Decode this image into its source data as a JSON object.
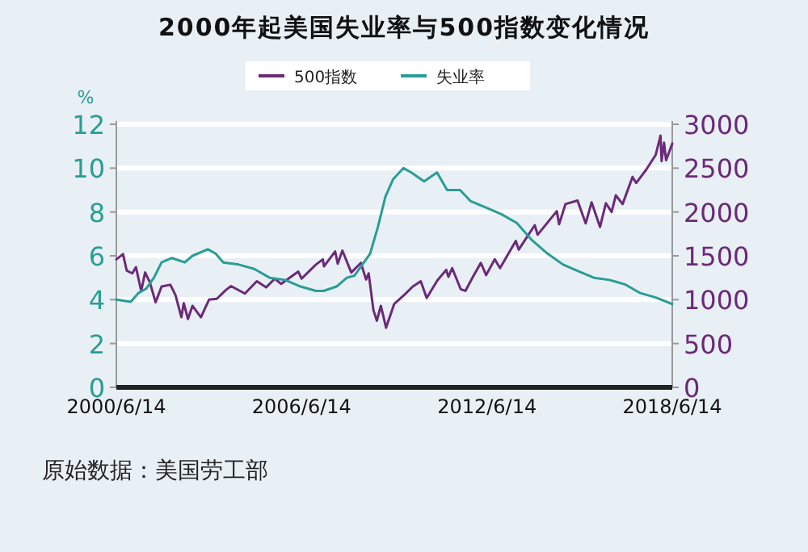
{
  "chart_data": {
    "type": "line",
    "title": "2000年起美国失业率与500指数变化情况",
    "ylabel": "%",
    "xlim": [
      "2000-06-14",
      "2018-06-14"
    ],
    "xticks": [
      {
        "value": "2000-06-14",
        "label": "2000/6/14"
      },
      {
        "value": "2006-06-14",
        "label": "2006/6/14"
      },
      {
        "value": "2012-06-14",
        "label": "2012/6/14"
      },
      {
        "value": "2018-06-14",
        "label": "2018/6/14"
      }
    ],
    "ylim": [
      0,
      12
    ],
    "yticks": [
      0,
      2,
      4,
      6,
      8,
      10,
      12
    ],
    "y2lim": [
      0,
      3000
    ],
    "y2ticks": [
      0,
      500,
      1000,
      1500,
      2000,
      2500,
      3000
    ],
    "grid": "y",
    "legend": "top",
    "series": [
      {
        "name": "500指数",
        "color": "#6b2a7a",
        "axis": "y2",
        "x": [
          "2000-06-14",
          "2000-09-01",
          "2000-10-15",
          "2000-12-20",
          "2001-02-01",
          "2001-04-04",
          "2001-05-20",
          "2001-07-15",
          "2001-09-21",
          "2001-12-01",
          "2002-03-15",
          "2002-05-15",
          "2002-07-23",
          "2002-08-20",
          "2002-10-09",
          "2002-12-01",
          "2003-03-11",
          "2003-06-15",
          "2003-09-15",
          "2003-12-31",
          "2004-03-01",
          "2004-08-12",
          "2004-12-31",
          "2005-04-20",
          "2005-08-01",
          "2005-10-15",
          "2006-05-05",
          "2006-06-14",
          "2006-11-30",
          "2007-02-20",
          "2007-03-05",
          "2007-07-15",
          "2007-08-15",
          "2007-10-09",
          "2008-01-22",
          "2008-05-15",
          "2008-07-15",
          "2008-08-15",
          "2008-10-10",
          "2008-11-20",
          "2009-01-06",
          "2009-03-09",
          "2009-06-12",
          "2009-10-15",
          "2010-01-19",
          "2010-04-23",
          "2010-07-02",
          "2010-11-05",
          "2011-02-18",
          "2011-03-16",
          "2011-04-29",
          "2011-08-08",
          "2011-10-03",
          "2011-12-31",
          "2012-04-02",
          "2012-06-04",
          "2012-09-14",
          "2012-11-15",
          "2013-05-21",
          "2013-06-24",
          "2013-12-31",
          "2014-02-03",
          "2014-09-18",
          "2014-10-15",
          "2014-12-29",
          "2015-05-21",
          "2015-08-25",
          "2015-11-03",
          "2016-02-11",
          "2016-04-20",
          "2016-06-27",
          "2016-08-15",
          "2016-11-04",
          "2017-03-01",
          "2017-04-13",
          "2017-08-08",
          "2017-11-30",
          "2018-01-26",
          "2018-02-08",
          "2018-03-09",
          "2018-04-02",
          "2018-06-14"
        ],
        "values": [
          1460,
          1520,
          1330,
          1300,
          1370,
          1100,
          1310,
          1200,
          970,
          1150,
          1170,
          1050,
          800,
          960,
          780,
          930,
          800,
          1000,
          1010,
          1110,
          1155,
          1070,
          1210,
          1140,
          1240,
          1180,
          1320,
          1240,
          1400,
          1460,
          1380,
          1550,
          1410,
          1560,
          1310,
          1420,
          1230,
          1300,
          880,
          760,
          930,
          680,
          950,
          1060,
          1150,
          1210,
          1020,
          1220,
          1340,
          1260,
          1360,
          1120,
          1100,
          1260,
          1420,
          1280,
          1460,
          1360,
          1670,
          1570,
          1850,
          1740,
          2010,
          1860,
          2090,
          2130,
          1870,
          2110,
          1830,
          2100,
          2000,
          2190,
          2090,
          2400,
          2330,
          2480,
          2650,
          2870,
          2580,
          2790,
          2590,
          2780
        ]
      },
      {
        "name": "失业率",
        "color": "#2a9d95",
        "x": [
          "2000-06-14",
          "2000-12-01",
          "2001-03-01",
          "2001-06-01",
          "2001-09-01",
          "2001-12-01",
          "2002-04-01",
          "2002-09-01",
          "2002-12-01",
          "2003-06-01",
          "2003-09-01",
          "2003-12-01",
          "2004-06-01",
          "2004-12-01",
          "2005-06-01",
          "2005-12-01",
          "2006-06-01",
          "2006-12-01",
          "2007-03-01",
          "2007-08-01",
          "2007-12-01",
          "2008-03-01",
          "2008-06-01",
          "2008-09-01",
          "2008-12-01",
          "2009-03-01",
          "2009-06-01",
          "2009-10-01",
          "2010-01-01",
          "2010-06-01",
          "2010-11-01",
          "2011-03-01",
          "2011-08-01",
          "2011-12-01",
          "2012-06-01",
          "2012-12-01",
          "2013-06-01",
          "2013-12-01",
          "2014-06-01",
          "2014-12-01",
          "2015-06-01",
          "2015-12-01",
          "2016-06-01",
          "2016-12-01",
          "2017-06-01",
          "2017-12-01",
          "2018-06-14"
        ],
        "values": [
          4.0,
          3.9,
          4.3,
          4.5,
          5.0,
          5.7,
          5.9,
          5.7,
          6.0,
          6.3,
          6.1,
          5.7,
          5.6,
          5.4,
          5.0,
          4.9,
          4.6,
          4.4,
          4.4,
          4.6,
          5.0,
          5.1,
          5.6,
          6.1,
          7.3,
          8.7,
          9.5,
          10.0,
          9.8,
          9.4,
          9.8,
          9.0,
          9.0,
          8.5,
          8.2,
          7.9,
          7.5,
          6.7,
          6.1,
          5.6,
          5.3,
          5.0,
          4.9,
          4.7,
          4.3,
          4.1,
          3.8
        ]
      }
    ],
    "annotations": [
      "原始数据：美国劳工部"
    ]
  }
}
